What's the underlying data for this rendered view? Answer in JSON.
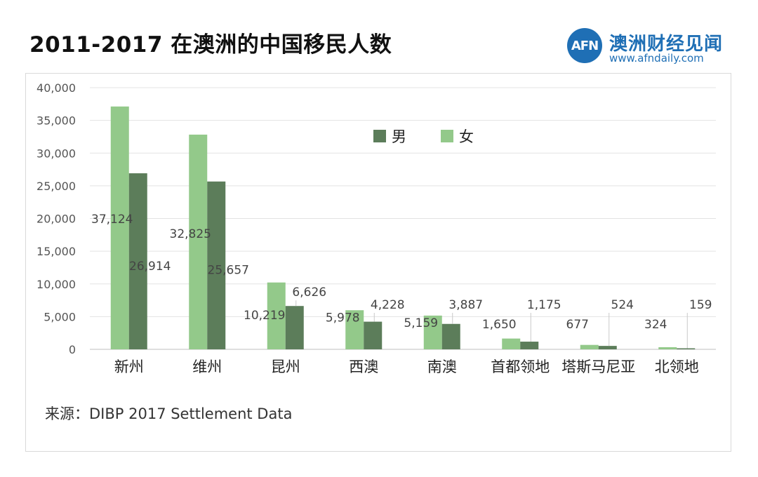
{
  "title": "2011-2017 在澳洲的中国移民人数",
  "brand": {
    "logo_mark": "AFN",
    "name": "澳洲财经见闻",
    "url": "www.afndaily.com",
    "color": "#1f6fb5"
  },
  "source": "来源：DIBP 2017 Settlement Data",
  "chart_data": {
    "type": "bar",
    "categories": [
      "新州",
      "维州",
      "昆州",
      "西澳",
      "南澳",
      "首都领地",
      "塔斯马尼亚",
      "北领地"
    ],
    "series": [
      {
        "name": "女",
        "color": "#93c98a",
        "values": [
          37124,
          32825,
          10219,
          5978,
          5159,
          1650,
          677,
          324
        ],
        "labels": [
          "37,124",
          "32,825",
          "10,219",
          "5,978",
          "5,159",
          "1,650",
          "677",
          "324"
        ]
      },
      {
        "name": "男",
        "color": "#5c7d5a",
        "values": [
          26914,
          25657,
          6626,
          4228,
          3887,
          1175,
          524,
          159
        ],
        "labels": [
          "26,914",
          "25,657",
          "6,626",
          "4,228",
          "3,887",
          "1,175",
          "524",
          "159"
        ]
      }
    ],
    "legend": [
      {
        "name": "男",
        "color": "#5c7d5a"
      },
      {
        "name": "女",
        "color": "#93c98a"
      }
    ],
    "y_ticks": [
      "0",
      "5,000",
      "10,000",
      "15,000",
      "20,000",
      "25,000",
      "30,000",
      "35,000",
      "40,000"
    ],
    "ylim": [
      0,
      40000
    ],
    "grid": true,
    "legend_position": "top-center"
  }
}
